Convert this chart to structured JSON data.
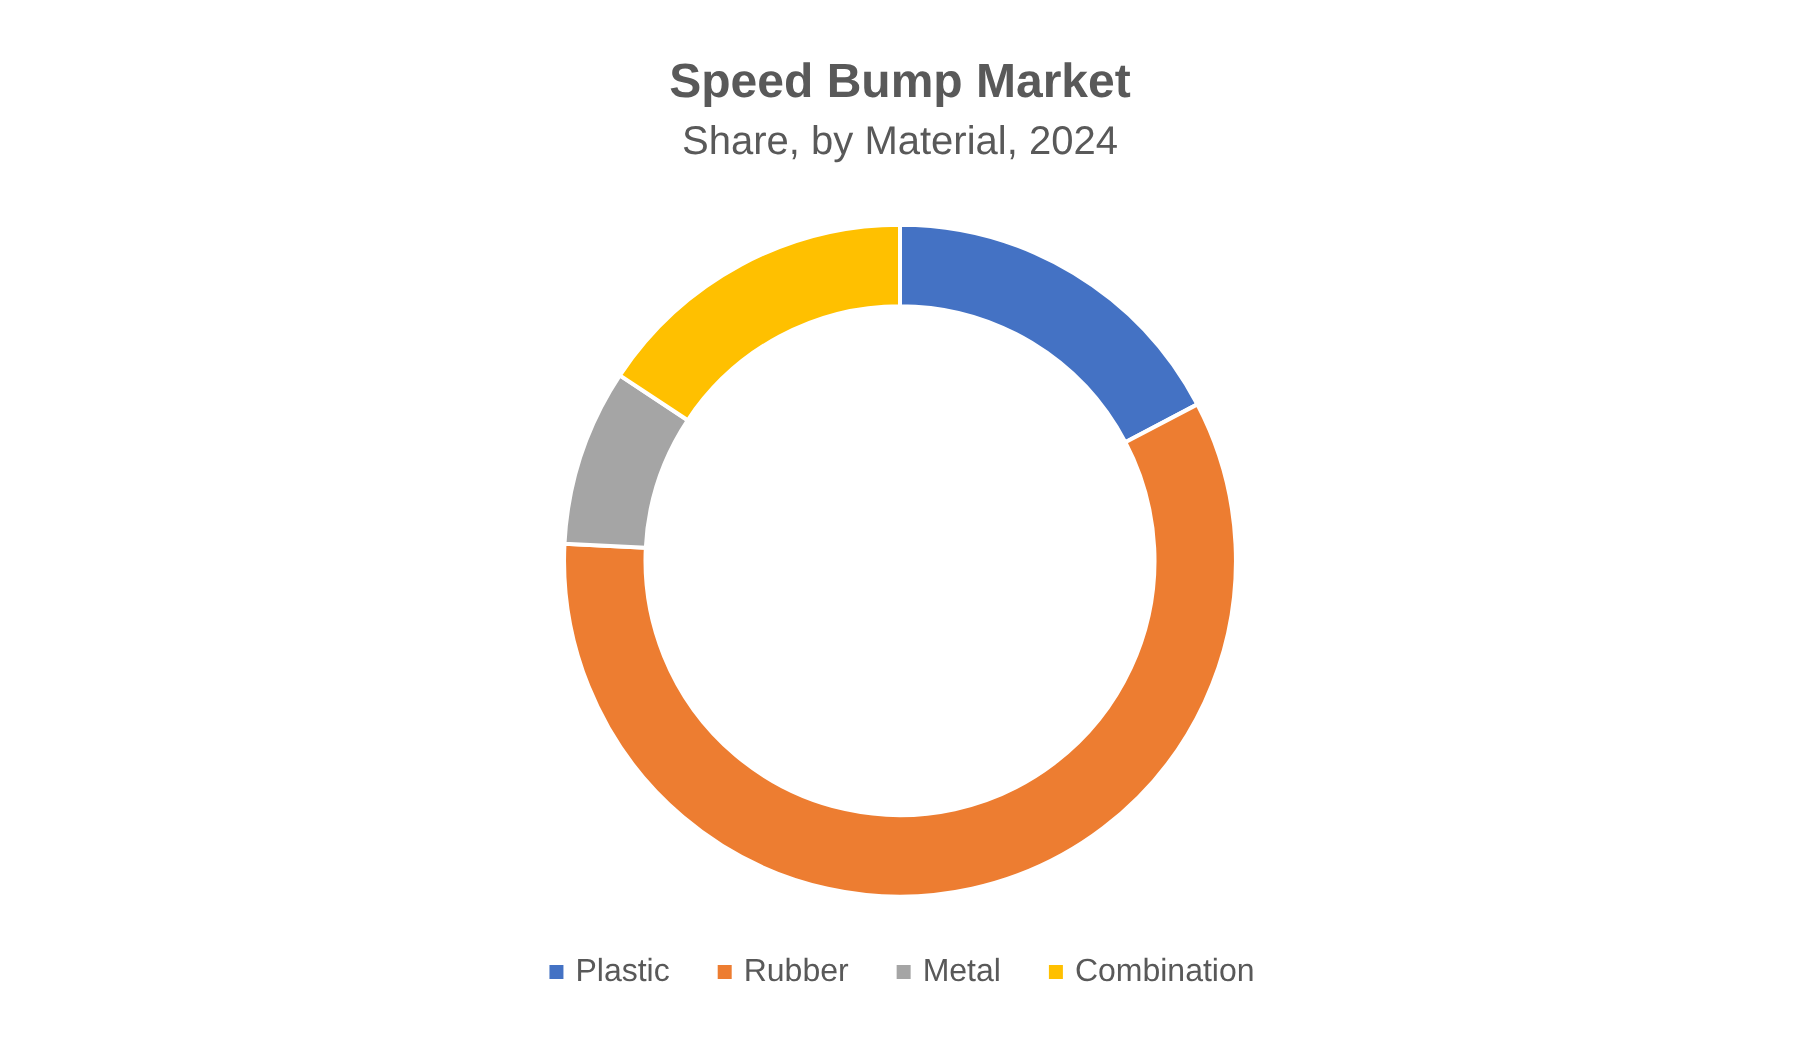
{
  "chart_data": {
    "type": "donut",
    "title": "Speed Bump Market",
    "subtitle": "Share, by Material, 2024",
    "categories": [
      "Plastic",
      "Rubber",
      "Metal",
      "Combination"
    ],
    "values": [
      17.3,
      58.5,
      8.5,
      15.7
    ],
    "colors": [
      "#4472c4",
      "#ed7d31",
      "#a5a5a5",
      "#ffc000"
    ],
    "legend": "bottom"
  }
}
